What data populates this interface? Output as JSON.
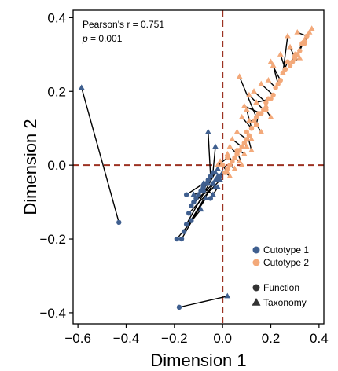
{
  "chart_data": {
    "type": "scatter",
    "xlabel": "Dimension 1",
    "ylabel": "Dimension 2",
    "xlim": [
      -0.62,
      0.42
    ],
    "ylim": [
      -0.43,
      0.42
    ],
    "xticks": [
      -0.6,
      -0.4,
      -0.2,
      0.0,
      0.2,
      0.4
    ],
    "yticks": [
      -0.4,
      -0.2,
      0.0,
      0.2,
      0.4
    ],
    "xtick_labels": [
      "−0.6",
      "−0.4",
      "−0.2",
      "0.0",
      "0.2",
      "0.4"
    ],
    "ytick_labels": [
      "−0.4",
      "−0.2",
      "0.0",
      "0.2",
      "0.4"
    ],
    "reference_lines": {
      "x": 0.0,
      "y": 0.0,
      "color": "#9c3222",
      "style": "dashed"
    },
    "annotations": {
      "pearson": "Pearson's r = 0.751",
      "p_italic": "p",
      "p_value": " = 0.001"
    },
    "legend": {
      "placement": "bottom-right",
      "colors": [
        {
          "label": "Cutotype 1",
          "color": "#3f5f8f"
        },
        {
          "label": "Cutotype 2",
          "color": "#f3a97a"
        }
      ],
      "shapes": [
        {
          "label": "Function",
          "shape": "circle"
        },
        {
          "label": "Taxonomy",
          "shape": "triangle"
        }
      ]
    },
    "series_colors": {
      "Cutotype 1": "#3f5f8f",
      "Cutotype 2": "#f3a97a"
    },
    "pairs": [
      {
        "group": "Cutotype 1",
        "function": [
          -0.43,
          -0.155
        ],
        "taxonomy": [
          -0.585,
          0.21
        ]
      },
      {
        "group": "Cutotype 1",
        "function": [
          -0.18,
          -0.385
        ],
        "taxonomy": [
          0.02,
          -0.355
        ]
      },
      {
        "group": "Cutotype 1",
        "function": [
          -0.17,
          -0.2
        ],
        "taxonomy": [
          -0.03,
          -0.04
        ]
      },
      {
        "group": "Cutotype 1",
        "function": [
          -0.16,
          -0.18
        ],
        "taxonomy": [
          -0.02,
          -0.03
        ]
      },
      {
        "group": "Cutotype 1",
        "function": [
          -0.15,
          -0.16
        ],
        "taxonomy": [
          -0.03,
          -0.02
        ]
      },
      {
        "group": "Cutotype 1",
        "function": [
          -0.14,
          -0.13
        ],
        "taxonomy": [
          -0.01,
          -0.04
        ]
      },
      {
        "group": "Cutotype 1",
        "function": [
          -0.13,
          -0.11
        ],
        "taxonomy": [
          -0.04,
          -0.05
        ]
      },
      {
        "group": "Cutotype 1",
        "function": [
          -0.12,
          -0.1
        ],
        "taxonomy": [
          -0.02,
          -0.01
        ]
      },
      {
        "group": "Cutotype 1",
        "function": [
          -0.11,
          -0.09
        ],
        "taxonomy": [
          -0.03,
          -0.06
        ]
      },
      {
        "group": "Cutotype 1",
        "function": [
          -0.1,
          -0.08
        ],
        "taxonomy": [
          -0.05,
          -0.03
        ]
      },
      {
        "group": "Cutotype 1",
        "function": [
          -0.09,
          -0.07
        ],
        "taxonomy": [
          -0.06,
          -0.05
        ]
      },
      {
        "group": "Cutotype 1",
        "function": [
          -0.08,
          -0.06
        ],
        "taxonomy": [
          -0.04,
          -0.08
        ]
      },
      {
        "group": "Cutotype 1",
        "function": [
          -0.07,
          -0.05
        ],
        "taxonomy": [
          -0.09,
          -0.07
        ]
      },
      {
        "group": "Cutotype 1",
        "function": [
          -0.06,
          -0.04
        ],
        "taxonomy": [
          -0.03,
          -0.02
        ]
      },
      {
        "group": "Cutotype 1",
        "function": [
          -0.05,
          -0.03
        ],
        "taxonomy": [
          -0.06,
          0.09
        ]
      },
      {
        "group": "Cutotype 1",
        "function": [
          -0.04,
          -0.02
        ],
        "taxonomy": [
          -0.03,
          0.05
        ]
      },
      {
        "group": "Cutotype 1",
        "function": [
          -0.08,
          -0.07
        ],
        "taxonomy": [
          -0.12,
          -0.08
        ]
      },
      {
        "group": "Cutotype 1",
        "function": [
          -0.15,
          -0.08
        ],
        "taxonomy": [
          -0.08,
          -0.05
        ]
      },
      {
        "group": "Cutotype 1",
        "function": [
          -0.04,
          -0.05
        ],
        "taxonomy": [
          -0.01,
          -0.03
        ]
      },
      {
        "group": "Cutotype 1",
        "function": [
          -0.02,
          -0.04
        ],
        "taxonomy": [
          0.0,
          -0.02
        ]
      },
      {
        "group": "Cutotype 1",
        "function": [
          -0.13,
          -0.15
        ],
        "taxonomy": [
          -0.07,
          -0.09
        ]
      },
      {
        "group": "Cutotype 1",
        "function": [
          -0.19,
          -0.2
        ],
        "taxonomy": [
          -0.09,
          -0.12
        ]
      },
      {
        "group": "Cutotype 1",
        "function": [
          -0.05,
          -0.09
        ],
        "taxonomy": [
          -0.02,
          -0.06
        ]
      },
      {
        "group": "Cutotype 2",
        "function": [
          0.25,
          0.25
        ],
        "taxonomy": [
          0.27,
          0.35
        ]
      },
      {
        "group": "Cutotype 2",
        "function": [
          0.33,
          0.33
        ],
        "taxonomy": [
          0.37,
          0.37
        ]
      },
      {
        "group": "Cutotype 2",
        "function": [
          0.35,
          0.35
        ],
        "taxonomy": [
          0.31,
          0.36
        ]
      },
      {
        "group": "Cutotype 2",
        "function": [
          0.24,
          0.23
        ],
        "taxonomy": [
          0.2,
          0.28
        ]
      },
      {
        "group": "Cutotype 2",
        "function": [
          0.14,
          0.13
        ],
        "taxonomy": [
          0.07,
          0.24
        ]
      },
      {
        "group": "Cutotype 2",
        "function": [
          0.17,
          0.15
        ],
        "taxonomy": [
          0.11,
          0.19
        ]
      },
      {
        "group": "Cutotype 2",
        "function": [
          0.18,
          0.17
        ],
        "taxonomy": [
          0.13,
          0.2
        ]
      },
      {
        "group": "Cutotype 2",
        "function": [
          0.22,
          0.21
        ],
        "taxonomy": [
          0.19,
          0.23
        ]
      },
      {
        "group": "Cutotype 2",
        "function": [
          0.28,
          0.27
        ],
        "taxonomy": [
          0.3,
          0.3
        ]
      },
      {
        "group": "Cutotype 2",
        "function": [
          0.31,
          0.3
        ],
        "taxonomy": [
          0.33,
          0.33
        ]
      },
      {
        "group": "Cutotype 2",
        "function": [
          0.26,
          0.26
        ],
        "taxonomy": [
          0.24,
          0.3
        ]
      },
      {
        "group": "Cutotype 2",
        "function": [
          0.21,
          0.19
        ],
        "taxonomy": [
          0.16,
          0.22
        ]
      },
      {
        "group": "Cutotype 2",
        "function": [
          0.19,
          0.18
        ],
        "taxonomy": [
          0.18,
          0.16
        ]
      },
      {
        "group": "Cutotype 2",
        "function": [
          0.15,
          0.14
        ],
        "taxonomy": [
          0.14,
          0.11
        ]
      },
      {
        "group": "Cutotype 2",
        "function": [
          0.13,
          0.12
        ],
        "taxonomy": [
          0.11,
          0.12
        ]
      },
      {
        "group": "Cutotype 2",
        "function": [
          0.12,
          0.1
        ],
        "taxonomy": [
          0.08,
          0.13
        ]
      },
      {
        "group": "Cutotype 2",
        "function": [
          0.11,
          0.08
        ],
        "taxonomy": [
          0.12,
          0.07
        ]
      },
      {
        "group": "Cutotype 2",
        "function": [
          0.1,
          0.07
        ],
        "taxonomy": [
          0.06,
          0.09
        ]
      },
      {
        "group": "Cutotype 2",
        "function": [
          0.09,
          0.06
        ],
        "taxonomy": [
          0.1,
          0.05
        ]
      },
      {
        "group": "Cutotype 2",
        "function": [
          0.08,
          0.05
        ],
        "taxonomy": [
          0.04,
          0.07
        ]
      },
      {
        "group": "Cutotype 2",
        "function": [
          0.07,
          0.04
        ],
        "taxonomy": [
          0.09,
          0.03
        ]
      },
      {
        "group": "Cutotype 2",
        "function": [
          0.06,
          0.03
        ],
        "taxonomy": [
          0.03,
          0.05
        ]
      },
      {
        "group": "Cutotype 2",
        "function": [
          0.05,
          0.02
        ],
        "taxonomy": [
          0.07,
          0.01
        ]
      },
      {
        "group": "Cutotype 2",
        "function": [
          0.04,
          0.01
        ],
        "taxonomy": [
          0.02,
          0.03
        ]
      },
      {
        "group": "Cutotype 2",
        "function": [
          0.03,
          0.0
        ],
        "taxonomy": [
          0.05,
          -0.01
        ]
      },
      {
        "group": "Cutotype 2",
        "function": [
          0.02,
          -0.01
        ],
        "taxonomy": [
          -0.01,
          0.01
        ]
      },
      {
        "group": "Cutotype 2",
        "function": [
          0.01,
          -0.02
        ],
        "taxonomy": [
          0.03,
          -0.03
        ]
      },
      {
        "group": "Cutotype 2",
        "function": [
          0.16,
          0.14
        ],
        "taxonomy": [
          0.09,
          0.16
        ]
      },
      {
        "group": "Cutotype 2",
        "function": [
          0.2,
          0.18
        ],
        "taxonomy": [
          0.14,
          0.17
        ]
      },
      {
        "group": "Cutotype 2",
        "function": [
          0.23,
          0.22
        ],
        "taxonomy": [
          0.21,
          0.27
        ]
      },
      {
        "group": "Cutotype 2",
        "function": [
          0.27,
          0.28
        ],
        "taxonomy": [
          0.25,
          0.25
        ]
      },
      {
        "group": "Cutotype 2",
        "function": [
          0.3,
          0.29
        ],
        "taxonomy": [
          0.28,
          0.32
        ]
      },
      {
        "group": "Cutotype 2",
        "function": [
          0.32,
          0.31
        ],
        "taxonomy": [
          0.34,
          0.34
        ]
      },
      {
        "group": "Cutotype 2",
        "function": [
          0.34,
          0.33
        ],
        "taxonomy": [
          0.36,
          0.36
        ]
      },
      {
        "group": "Cutotype 2",
        "function": [
          0.29,
          0.28
        ],
        "taxonomy": [
          0.32,
          0.29
        ]
      },
      {
        "group": "Cutotype 2",
        "function": [
          0.18,
          0.15
        ],
        "taxonomy": [
          0.2,
          0.13
        ]
      },
      {
        "group": "Cutotype 2",
        "function": [
          0.14,
          0.11
        ],
        "taxonomy": [
          0.16,
          0.09
        ]
      },
      {
        "group": "Cutotype 2",
        "function": [
          0.1,
          0.09
        ],
        "taxonomy": [
          0.12,
          0.04
        ]
      },
      {
        "group": "Cutotype 2",
        "function": [
          0.06,
          0.04
        ],
        "taxonomy": [
          0.08,
          0.0
        ]
      },
      {
        "group": "Cutotype 2",
        "function": [
          0.02,
          0.02
        ],
        "taxonomy": [
          -0.02,
          0.0
        ]
      },
      {
        "group": "Cutotype 2",
        "function": [
          0.0,
          0.0
        ],
        "taxonomy": [
          0.02,
          -0.02
        ]
      },
      {
        "group": "Cutotype 2",
        "function": [
          0.12,
          0.1
        ],
        "taxonomy": [
          0.1,
          0.15
        ]
      }
    ]
  }
}
